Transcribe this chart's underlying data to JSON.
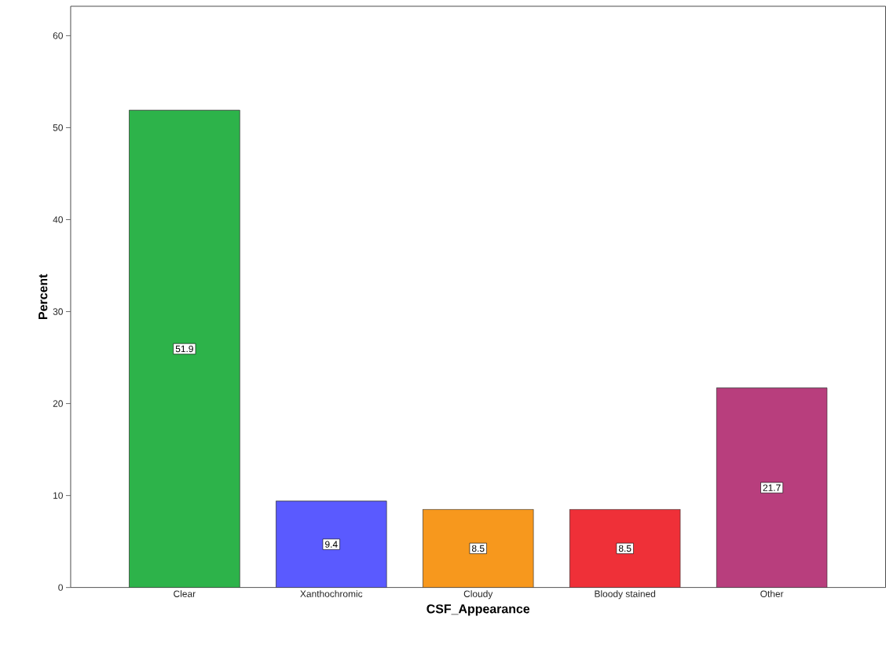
{
  "chart_data": {
    "type": "bar",
    "xlabel": "CSF_Appearance",
    "ylabel": "Percent",
    "categories": [
      "Clear",
      "Xanthochromic",
      "Cloudy",
      "Bloody stained",
      "Other"
    ],
    "values": [
      51.9,
      9.4,
      8.5,
      8.5,
      21.7
    ],
    "colors": [
      "#2db34a",
      "#5a5aff",
      "#f7981d",
      "#ef3038",
      "#b83e7d"
    ],
    "ylim": [
      0,
      63.2
    ],
    "yticks": [
      0,
      10,
      20,
      30,
      40,
      50,
      60
    ],
    "data_labels": true,
    "grid": false
  }
}
